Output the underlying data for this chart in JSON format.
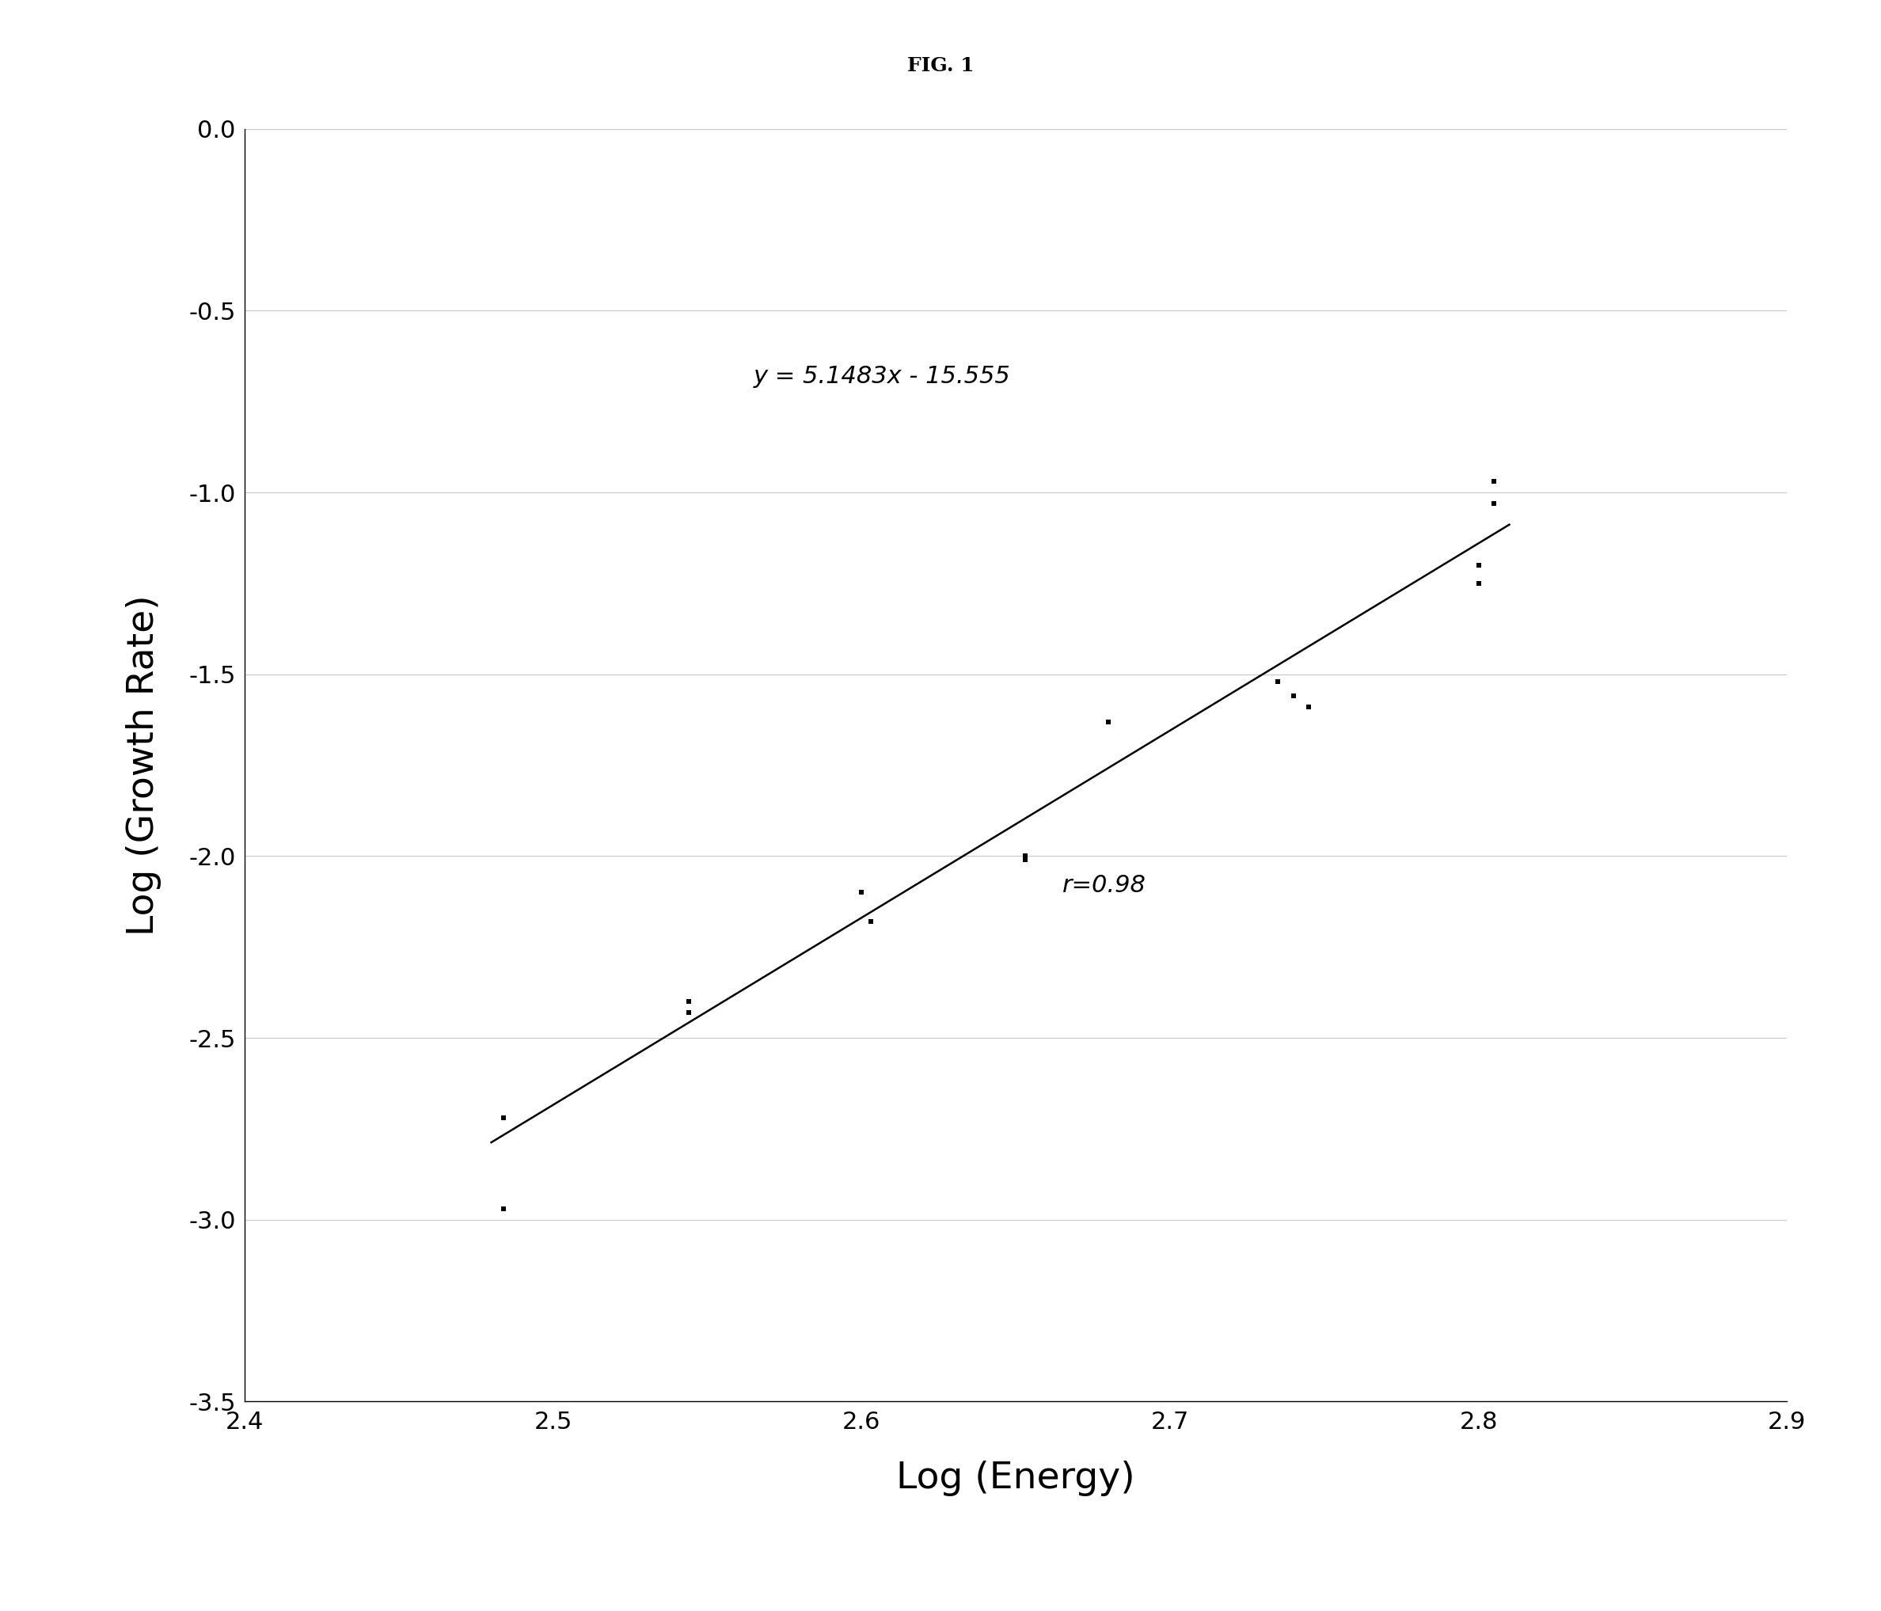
{
  "title": "FIG. 1",
  "xlabel": "Log (Energy)",
  "ylabel": "Log (Growth Rate)",
  "xlim": [
    2.4,
    2.9
  ],
  "ylim": [
    -3.5,
    0
  ],
  "xticks": [
    2.4,
    2.5,
    2.6,
    2.7,
    2.8,
    2.9
  ],
  "yticks": [
    0,
    -0.5,
    -1.0,
    -1.5,
    -2.0,
    -2.5,
    -3.0,
    -3.5
  ],
  "data_x": [
    2.484,
    2.484,
    2.544,
    2.544,
    2.6,
    2.603,
    2.653,
    2.653,
    2.68,
    2.735,
    2.74,
    2.745,
    2.8,
    2.8,
    2.805,
    2.805
  ],
  "data_y": [
    -2.72,
    -2.97,
    -2.4,
    -2.43,
    -2.1,
    -2.18,
    -2.0,
    -2.01,
    -1.63,
    -1.52,
    -1.56,
    -1.59,
    -1.2,
    -1.25,
    -0.97,
    -1.03
  ],
  "fit_slope": 5.1483,
  "fit_intercept": -15.555,
  "fit_x_start": 2.48,
  "fit_x_end": 2.81,
  "equation_text": "y = 5.1483x - 15.555",
  "equation_x": 2.565,
  "equation_y": -0.7,
  "r_text": "r=0.98",
  "r_x": 2.665,
  "r_y": -2.1,
  "marker": "s",
  "marker_size": 5,
  "marker_color": "#000000",
  "line_color": "#000000",
  "line_width": 1.8,
  "grid_color": "#c8c8c8",
  "background_color": "#ffffff",
  "title_fontsize": 18,
  "label_fontsize": 34,
  "tick_fontsize": 22,
  "annotation_fontsize": 22,
  "r_annotation_fontsize": 22
}
